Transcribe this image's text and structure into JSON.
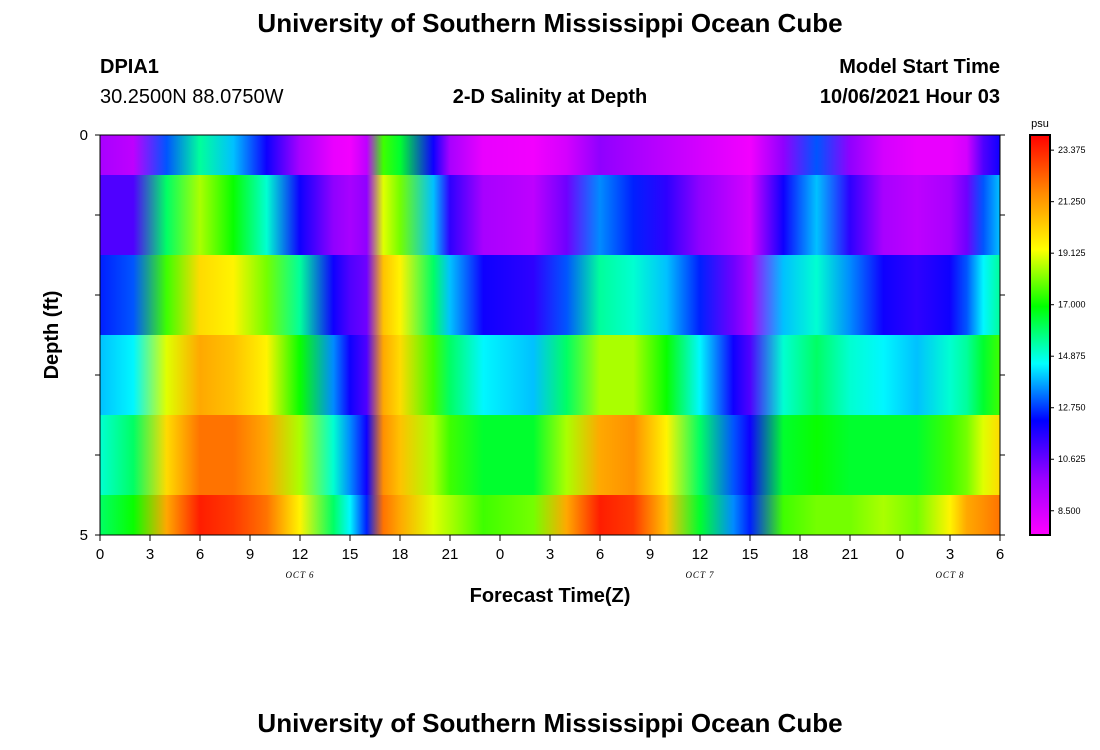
{
  "header": {
    "title": "University of Southern Mississippi Ocean Cube",
    "station_id": "DPIA1",
    "station_coords": "30.2500N  88.0750W",
    "model_start_label": "Model Start Time",
    "model_start_value": "10/06/2021 Hour 03",
    "subtitle": "2-D Salinity at Depth"
  },
  "footer": {
    "title": "University of Southern Mississippi Ocean Cube"
  },
  "chart_data": {
    "type": "heatmap",
    "title": "2-D Salinity at Depth",
    "xlabel": "Forecast Time(Z)",
    "ylabel": "Depth (ft)",
    "x_tick_labels": [
      "0",
      "3",
      "6",
      "9",
      "12",
      "15",
      "18",
      "21",
      "0",
      "3",
      "6",
      "9",
      "12",
      "15",
      "18",
      "21",
      "0",
      "3",
      "6"
    ],
    "x_range_hours": [
      0,
      54
    ],
    "date_labels": [
      {
        "label": "OCT 6",
        "hour": 12
      },
      {
        "label": "OCT 7",
        "hour": 36
      },
      {
        "label": "OCT 8",
        "hour": 51
      }
    ],
    "y_tick_labels": [
      "0",
      "5"
    ],
    "y_range_ft": [
      0,
      5
    ],
    "colorbar": {
      "unit": "psu",
      "min": 7.5,
      "max": 24.0,
      "tick_values": [
        23.375,
        21.25,
        19.125,
        17.0,
        14.875,
        12.75,
        10.625,
        8.5
      ],
      "tick_labels": [
        "23.375",
        "21.250",
        "19.125",
        "17.000",
        "14.875",
        "12.750",
        "10.625",
        "8.500"
      ],
      "colors": [
        "#ff00ff",
        "#9900ff",
        "#0000ff",
        "#00ffff",
        "#00ff00",
        "#ffff00",
        "#ff8800",
        "#ff0000"
      ]
    },
    "depth_layers": [
      {
        "top": 0.0,
        "bottom": 0.5
      },
      {
        "top": 0.5,
        "bottom": 1.5
      },
      {
        "top": 1.5,
        "bottom": 2.5
      },
      {
        "top": 2.5,
        "bottom": 3.5
      },
      {
        "top": 3.5,
        "bottom": 4.5
      },
      {
        "top": 4.5,
        "bottom": 5.0
      }
    ],
    "salinity_psu": [
      {
        "hour": 0,
        "layers": [
          9.5,
          11.0,
          12.5,
          14.0,
          15.0,
          16.0
        ]
      },
      {
        "hour": 2,
        "layers": [
          9.0,
          11.0,
          13.0,
          14.5,
          16.0,
          17.0
        ]
      },
      {
        "hour": 4,
        "layers": [
          13.0,
          16.0,
          17.5,
          19.0,
          20.0,
          21.0
        ]
      },
      {
        "hour": 6,
        "layers": [
          15.5,
          18.5,
          20.0,
          21.0,
          22.0,
          23.5
        ]
      },
      {
        "hour": 8,
        "layers": [
          14.0,
          17.0,
          19.5,
          20.5,
          22.0,
          23.0
        ]
      },
      {
        "hour": 10,
        "layers": [
          12.0,
          15.0,
          18.0,
          19.5,
          21.0,
          22.0
        ]
      },
      {
        "hour": 12,
        "layers": [
          9.5,
          12.0,
          15.5,
          17.0,
          18.5,
          19.5
        ]
      },
      {
        "hour": 14,
        "layers": [
          8.0,
          10.0,
          12.0,
          13.5,
          15.0,
          16.0
        ]
      },
      {
        "hour": 15,
        "layers": [
          7.8,
          9.5,
          11.0,
          12.0,
          13.5,
          14.5
        ]
      },
      {
        "hour": 16,
        "layers": [
          9.0,
          10.0,
          10.5,
          11.0,
          12.0,
          12.5
        ]
      },
      {
        "hour": 17,
        "layers": [
          17.5,
          19.0,
          20.5,
          21.0,
          21.5,
          22.0
        ]
      },
      {
        "hour": 18,
        "layers": [
          16.5,
          18.0,
          19.5,
          20.0,
          20.5,
          21.0
        ]
      },
      {
        "hour": 20,
        "layers": [
          12.0,
          14.0,
          16.0,
          17.5,
          18.5,
          19.0
        ]
      },
      {
        "hour": 21,
        "layers": [
          9.5,
          11.5,
          14.0,
          16.0,
          17.5,
          18.5
        ]
      },
      {
        "hour": 23,
        "layers": [
          8.0,
          9.5,
          12.0,
          14.5,
          16.5,
          17.5
        ]
      },
      {
        "hour": 26,
        "layers": [
          7.8,
          9.0,
          11.5,
          14.0,
          16.5,
          18.0
        ]
      },
      {
        "hour": 28,
        "layers": [
          8.5,
          10.5,
          13.0,
          16.0,
          18.5,
          21.0
        ]
      },
      {
        "hour": 30,
        "layers": [
          10.0,
          13.5,
          15.5,
          18.5,
          21.0,
          23.5
        ]
      },
      {
        "hour": 32,
        "layers": [
          9.5,
          12.5,
          15.0,
          18.5,
          21.5,
          23.0
        ]
      },
      {
        "hour": 34,
        "layers": [
          9.0,
          11.5,
          14.0,
          17.0,
          19.5,
          20.5
        ]
      },
      {
        "hour": 36,
        "layers": [
          8.5,
          10.0,
          12.5,
          14.5,
          16.0,
          16.5
        ]
      },
      {
        "hour": 38,
        "layers": [
          8.0,
          9.0,
          10.5,
          12.0,
          13.0,
          13.5
        ]
      },
      {
        "hour": 39,
        "layers": [
          7.8,
          8.5,
          9.5,
          11.0,
          12.0,
          12.5
        ]
      },
      {
        "hour": 41,
        "layers": [
          10.0,
          12.0,
          14.0,
          15.0,
          16.5,
          17.5
        ]
      },
      {
        "hour": 43,
        "layers": [
          13.0,
          14.0,
          15.0,
          16.0,
          17.0,
          18.0
        ]
      },
      {
        "hour": 45,
        "layers": [
          10.0,
          11.5,
          13.5,
          15.0,
          16.5,
          18.0
        ]
      },
      {
        "hour": 47,
        "layers": [
          8.5,
          9.5,
          12.0,
          14.5,
          16.5,
          18.5
        ]
      },
      {
        "hour": 49,
        "layers": [
          8.0,
          9.0,
          11.5,
          14.0,
          16.5,
          18.0
        ]
      },
      {
        "hour": 51,
        "layers": [
          8.0,
          9.5,
          12.0,
          15.0,
          17.5,
          19.5
        ]
      },
      {
        "hour": 52,
        "layers": [
          8.5,
          10.5,
          13.0,
          15.5,
          18.0,
          21.0
        ]
      },
      {
        "hour": 53,
        "layers": [
          11.0,
          13.0,
          14.5,
          16.5,
          19.0,
          21.5
        ]
      },
      {
        "hour": 54,
        "layers": [
          12.0,
          14.0,
          15.5,
          17.5,
          20.0,
          22.0
        ]
      }
    ]
  }
}
